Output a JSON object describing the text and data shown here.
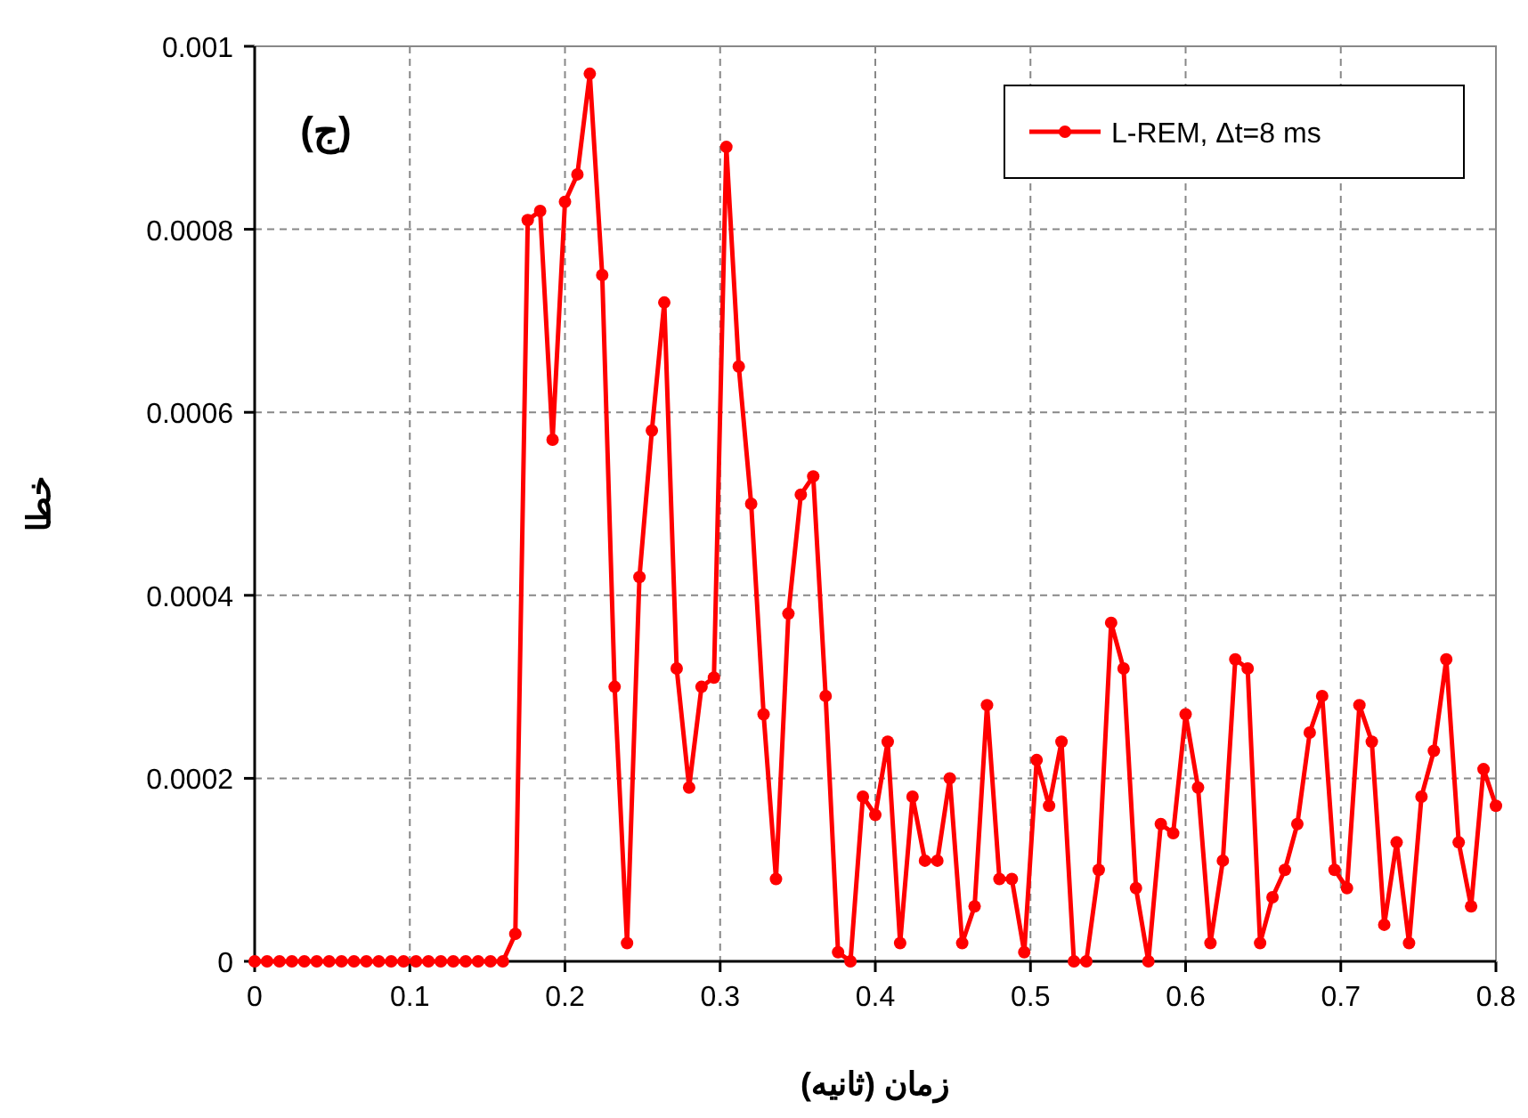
{
  "chart_data": {
    "type": "line",
    "xlabel": "زمان (ثانیه)",
    "ylabel": "خطا",
    "annotations": [
      "(ج)"
    ],
    "x": [
      0,
      0.008,
      0.016,
      0.024,
      0.032,
      0.04,
      0.048,
      0.056,
      0.064,
      0.072,
      0.08,
      0.088,
      0.096,
      0.104,
      0.112,
      0.12,
      0.128,
      0.136,
      0.144,
      0.152,
      0.16,
      0.168,
      0.176,
      0.184,
      0.192,
      0.2,
      0.208,
      0.216,
      0.224,
      0.232,
      0.24,
      0.248,
      0.256,
      0.264,
      0.272,
      0.28,
      0.288,
      0.296,
      0.304,
      0.312,
      0.32,
      0.328,
      0.336,
      0.344,
      0.352,
      0.36,
      0.368,
      0.376,
      0.384,
      0.392,
      0.4,
      0.408,
      0.416,
      0.424,
      0.432,
      0.44,
      0.448,
      0.456,
      0.464,
      0.472,
      0.48,
      0.488,
      0.496,
      0.504,
      0.512,
      0.52,
      0.528,
      0.536,
      0.544,
      0.552,
      0.56,
      0.568,
      0.576,
      0.584,
      0.592,
      0.6,
      0.608,
      0.616,
      0.624,
      0.632,
      0.64,
      0.648,
      0.656,
      0.664,
      0.672,
      0.68,
      0.688,
      0.696,
      0.704,
      0.712,
      0.72,
      0.728,
      0.736,
      0.744,
      0.752,
      0.76,
      0.768,
      0.776,
      0.784,
      0.792,
      0.8
    ],
    "series": [
      {
        "name": "L-REM, Δt=8 ms",
        "color": "#ff0000",
        "values": [
          0,
          0,
          0,
          0,
          0,
          0,
          0,
          0,
          0,
          0,
          0,
          0,
          0,
          0,
          0,
          0,
          0,
          0,
          0,
          0,
          0,
          3e-05,
          0.00081,
          0.00082,
          0.00057,
          0.00083,
          0.00086,
          0.00097,
          0.00075,
          0.0003,
          2e-05,
          0.00042,
          0.00058,
          0.00072,
          0.00032,
          0.00019,
          0.0003,
          0.00031,
          0.00089,
          0.00065,
          0.0005,
          0.00027,
          9e-05,
          0.00038,
          0.00051,
          0.00053,
          0.00029,
          1e-05,
          0,
          0.00018,
          0.00016,
          0.00024,
          2e-05,
          0.00018,
          0.00011,
          0.00011,
          0.0002,
          2e-05,
          6e-05,
          0.00028,
          9e-05,
          9e-05,
          1e-05,
          0.00022,
          0.00017,
          0.00024,
          0,
          0,
          0.0001,
          0.00037,
          0.00032,
          8e-05,
          0,
          0.00015,
          0.00014,
          0.00027,
          0.00019,
          2e-05,
          0.00011,
          0.00033,
          0.00032,
          2e-05,
          7e-05,
          0.0001,
          0.00015,
          0.00025,
          0.00029,
          0.0001,
          8e-05,
          0.00028,
          0.00024,
          4e-05,
          0.00013,
          2e-05,
          0.00018,
          0.00023,
          0.00033,
          0.00013,
          6e-05,
          0.00021,
          0.00017
        ]
      }
    ],
    "xlim": [
      0,
      0.8
    ],
    "xticks": [
      0,
      0.1,
      0.2,
      0.3,
      0.4,
      0.5,
      0.6,
      0.7,
      0.8
    ],
    "ylim": [
      0,
      0.001
    ],
    "yticks": [
      0,
      0.0002,
      0.0004,
      0.0006,
      0.0008,
      0.001
    ],
    "grid": true,
    "legend": "top right",
    "marker": "circle",
    "line_style": "solid"
  }
}
